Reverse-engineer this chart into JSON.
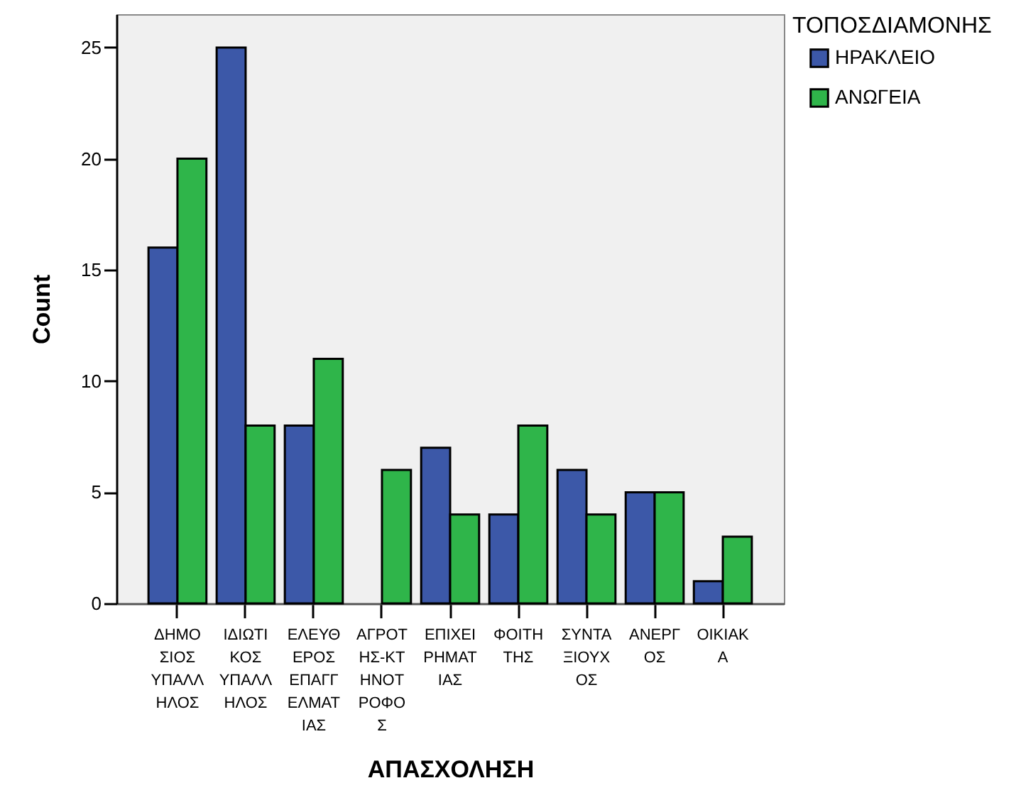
{
  "chart_data": {
    "type": "bar",
    "xlabel": "ΑΠΑΣΧΟΛΗΣΗ",
    "ylabel": "Count",
    "legend_title": "ΤΟΠΟΣΔΙΑΜΟΝΗΣ",
    "categories": [
      "ΔΗΜΟΣΙΟΣ ΥΠΑΛΛΗΛΟΣ",
      "ΙΔΙΩΤΙΚΟΣ ΥΠΑΛΛΗΛΟΣ",
      "ΕΛΕΥΘΕΡΟΣ ΕΠΑΓΓΕΛΜΑΤΙΑΣ",
      "ΑΓΡΟΤΗΣ-ΚΤΗΝΟΤΡΟΦΟΣ",
      "ΕΠΙΧΕΙΡΗΜΑΤΙΑΣ",
      "ΦΟΙΤΗΤΗΣ",
      "ΣΥΝΤΑΞΙΟΥΧΟΣ",
      "ΑΝΕΡΓΟΣ",
      "ΟΙΚΙΑΚΑ"
    ],
    "series": [
      {
        "name": "ΗΡΑΚΛΕΙΟ",
        "color": "#3c58a8",
        "values": [
          16,
          25,
          8,
          null,
          7,
          4,
          6,
          5,
          1
        ]
      },
      {
        "name": "ΑΝΩΓΕΙΑ",
        "color": "#2fb54a",
        "values": [
          20,
          8,
          11,
          6,
          4,
          8,
          4,
          5,
          3
        ]
      }
    ],
    "ylim": [
      0,
      26.5
    ],
    "yticks": [
      0,
      5,
      10,
      15,
      20,
      25
    ],
    "grid": false,
    "legend": "top right"
  }
}
